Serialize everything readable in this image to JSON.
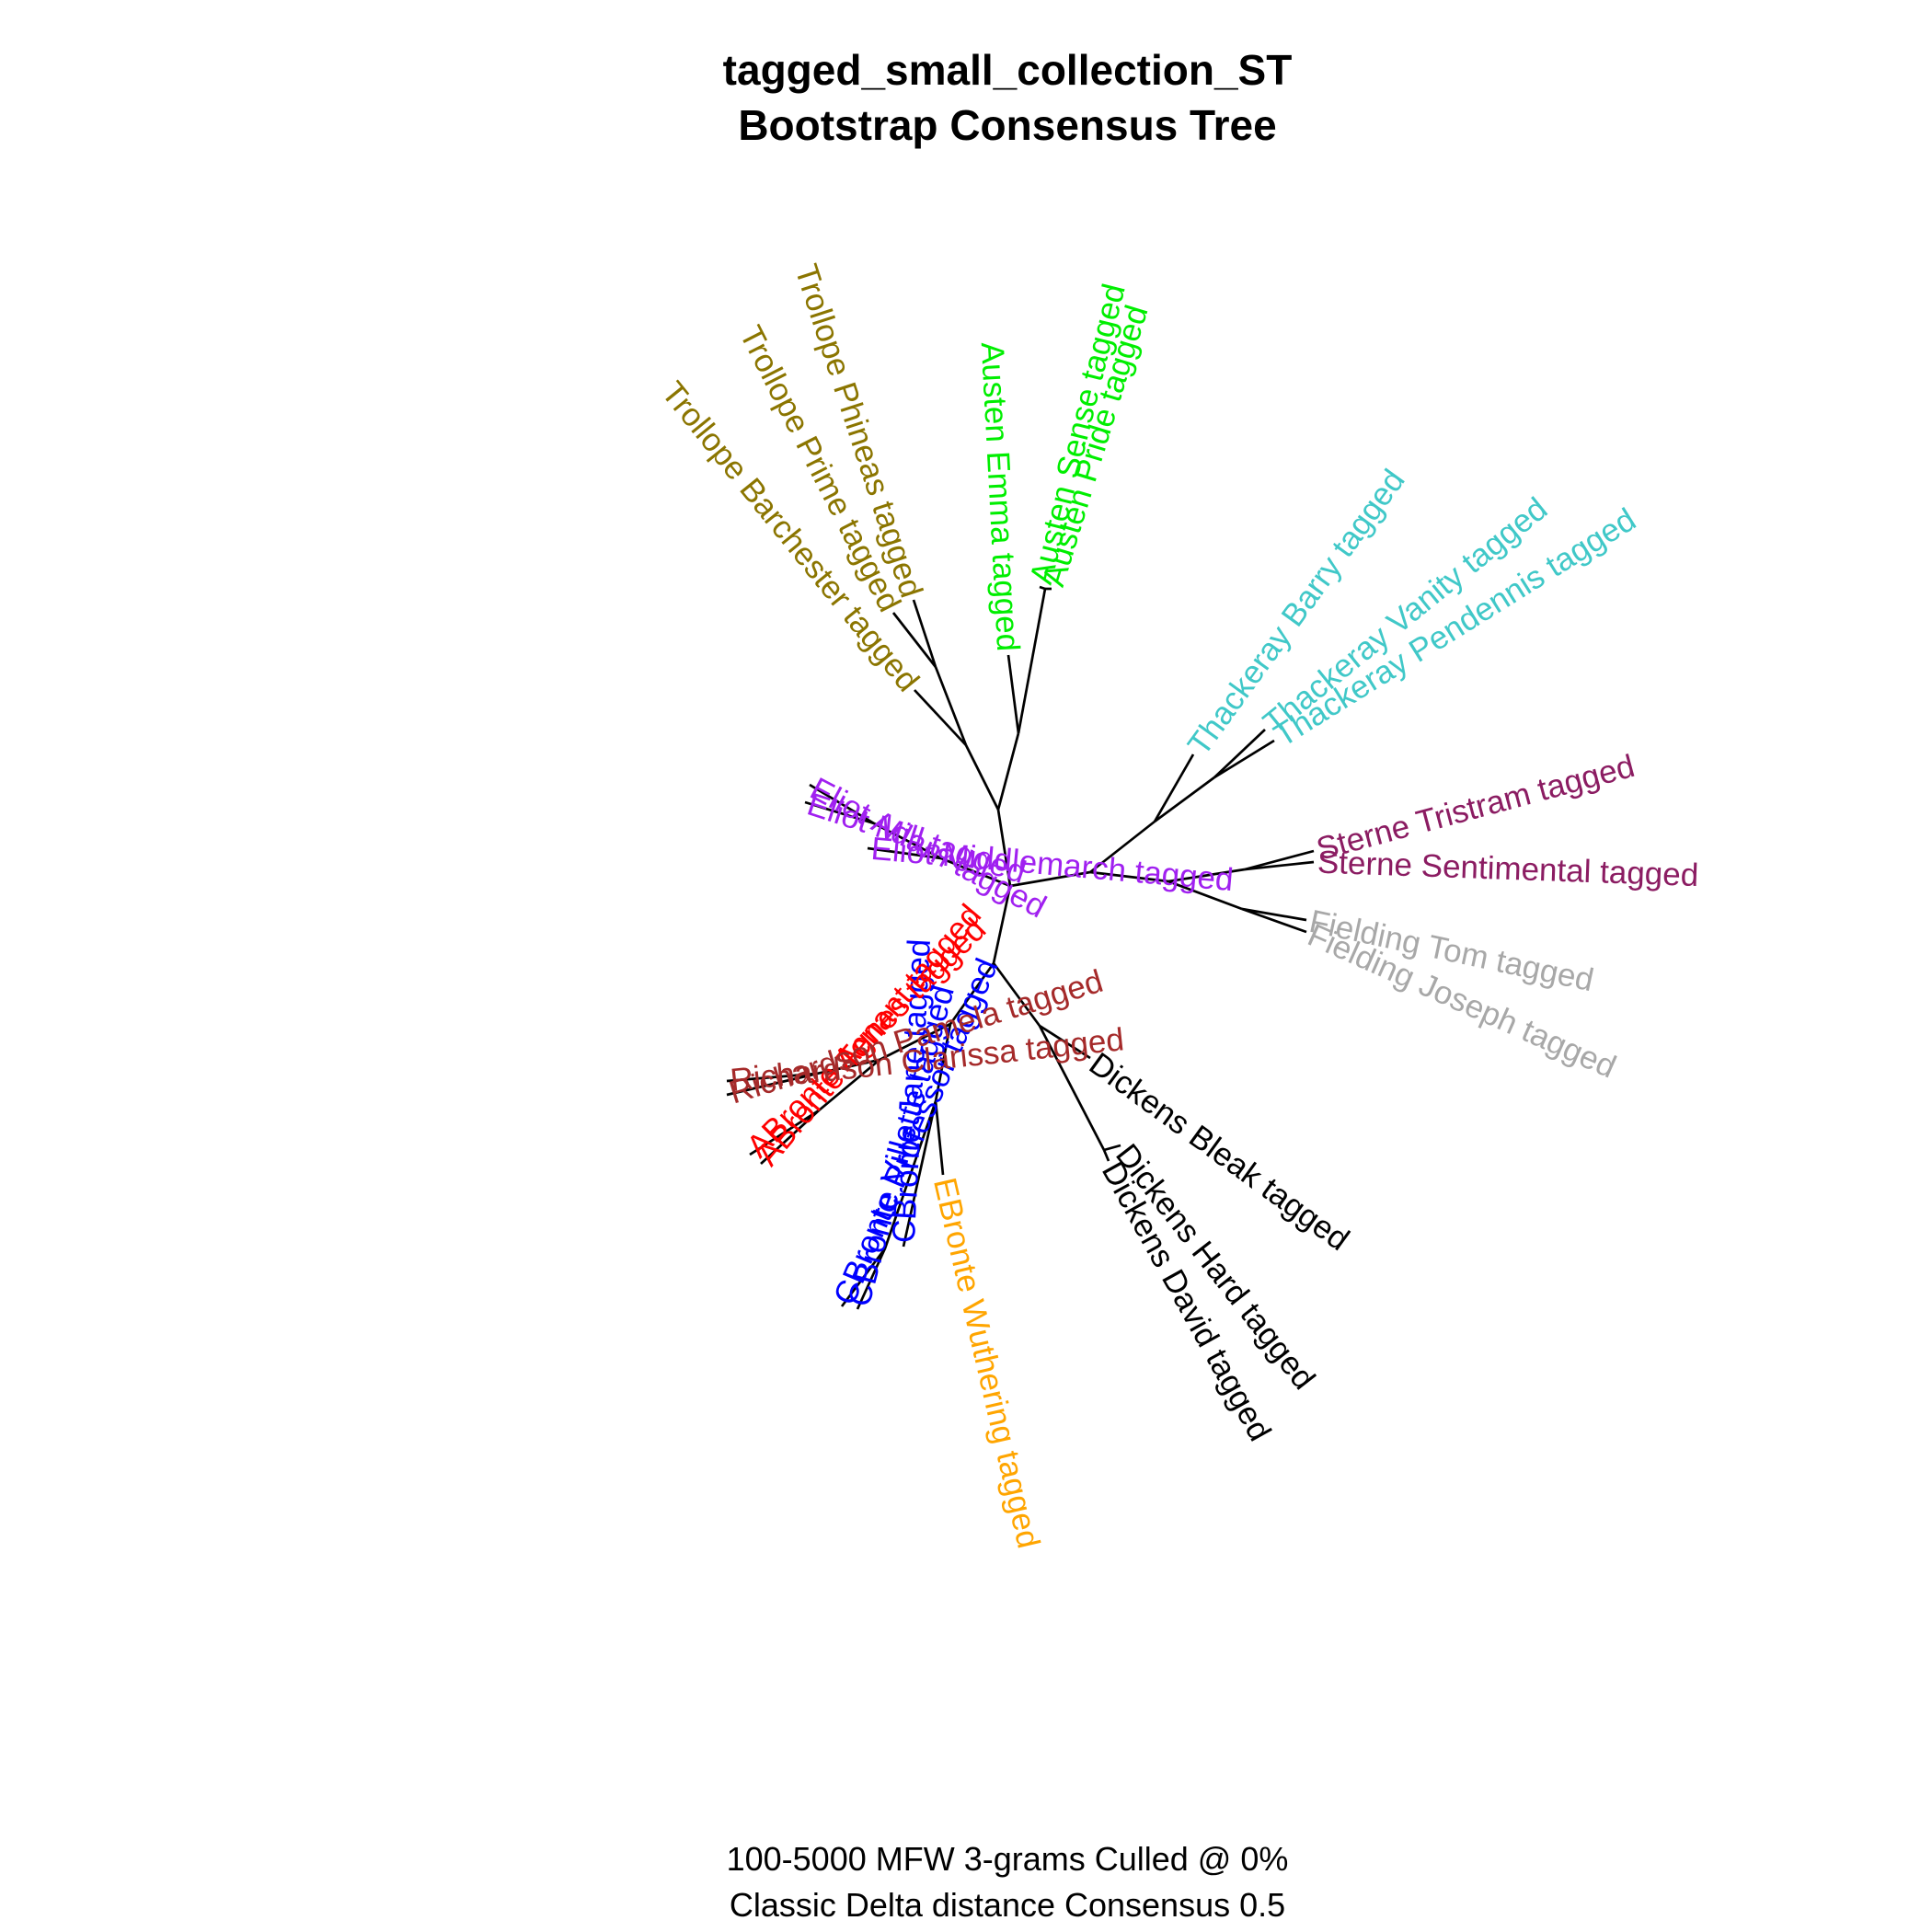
{
  "title_line1": "tagged_small_collection_ST",
  "title_line2": "Bootstrap Consensus Tree",
  "caption_line1": "100-5000 MFW 3-grams Culled @ 0%",
  "caption_line2": "Classic Delta distance Consensus 0.5",
  "colors": {
    "edge": "#000000",
    "Trollope": "#8b7500",
    "Austen": "#00ee00",
    "Thackeray": "#40c8c8",
    "Sterne": "#8b1c62",
    "Fielding": "#a8a8a8",
    "Dickens": "#000000",
    "EBronte": "#ffa500",
    "CBronte": "#0000ff",
    "ABronte": "#ff0000",
    "Richardson": "#a52a2a",
    "Eliot": "#a020f0"
  },
  "leaves": [
    {
      "id": "trollope-phineas",
      "label": "Trollope Phineas tagged",
      "author": "Trollope"
    },
    {
      "id": "trollope-prime",
      "label": "Trollope Prime tagged",
      "author": "Trollope"
    },
    {
      "id": "trollope-barchester",
      "label": "Trollope Barchester tagged",
      "author": "Trollope"
    },
    {
      "id": "austen-emma",
      "label": "Austen Emma tagged",
      "author": "Austen"
    },
    {
      "id": "austen-sense",
      "label": "Austen Sense tagged",
      "author": "Austen"
    },
    {
      "id": "austen-pride",
      "label": "Austen Pride tagged",
      "author": "Austen"
    },
    {
      "id": "thackeray-barry",
      "label": "Thackeray Barry tagged",
      "author": "Thackeray"
    },
    {
      "id": "thackeray-vanity",
      "label": "Thackeray Vanity tagged",
      "author": "Thackeray"
    },
    {
      "id": "thackeray-pendennis",
      "label": "Thackeray Pendennis tagged",
      "author": "Thackeray"
    },
    {
      "id": "sterne-tristram",
      "label": "Sterne Tristram tagged",
      "author": "Sterne"
    },
    {
      "id": "sterne-sentimental",
      "label": "Sterne Sentimental tagged",
      "author": "Sterne"
    },
    {
      "id": "fielding-tom",
      "label": "Fielding Tom tagged",
      "author": "Fielding"
    },
    {
      "id": "fielding-joseph",
      "label": "Fielding Joseph tagged",
      "author": "Fielding"
    },
    {
      "id": "dickens-bleak",
      "label": "Dickens Bleak tagged",
      "author": "Dickens"
    },
    {
      "id": "dickens-hard",
      "label": "Dickens Hard tagged",
      "author": "Dickens"
    },
    {
      "id": "dickens-david",
      "label": "Dickens David tagged",
      "author": "Dickens"
    },
    {
      "id": "ebronte-wuthering",
      "label": "EBronte Wuthering tagged",
      "author": "EBronte"
    },
    {
      "id": "cbronte-jane",
      "label": "CBronte Jane tagged",
      "author": "CBronte"
    },
    {
      "id": "cbronte-villette",
      "label": "CBronte Villette tagged",
      "author": "CBronte"
    },
    {
      "id": "cbronte-professor",
      "label": "CBronte Professor tagged",
      "author": "CBronte"
    },
    {
      "id": "abronte-tenant",
      "label": "ABronte Tenant tagged",
      "author": "ABronte"
    },
    {
      "id": "abronte-agnes",
      "label": "ABronte Agnes tagged",
      "author": "ABronte"
    },
    {
      "id": "richardson-pamela",
      "label": "Richardson Pamela tagged",
      "author": "Richardson"
    },
    {
      "id": "richardson-clarissa",
      "label": "Richardson Clarissa tagged",
      "author": "Richardson"
    },
    {
      "id": "eliot-middlemarch",
      "label": "Eliot Middlemarch tagged",
      "author": "Eliot"
    },
    {
      "id": "eliot-mill",
      "label": "Eliot Mill tagged",
      "author": "Eliot"
    },
    {
      "id": "eliot-adam",
      "label": "Eliot Adam tagged",
      "author": "Eliot"
    }
  ]
}
